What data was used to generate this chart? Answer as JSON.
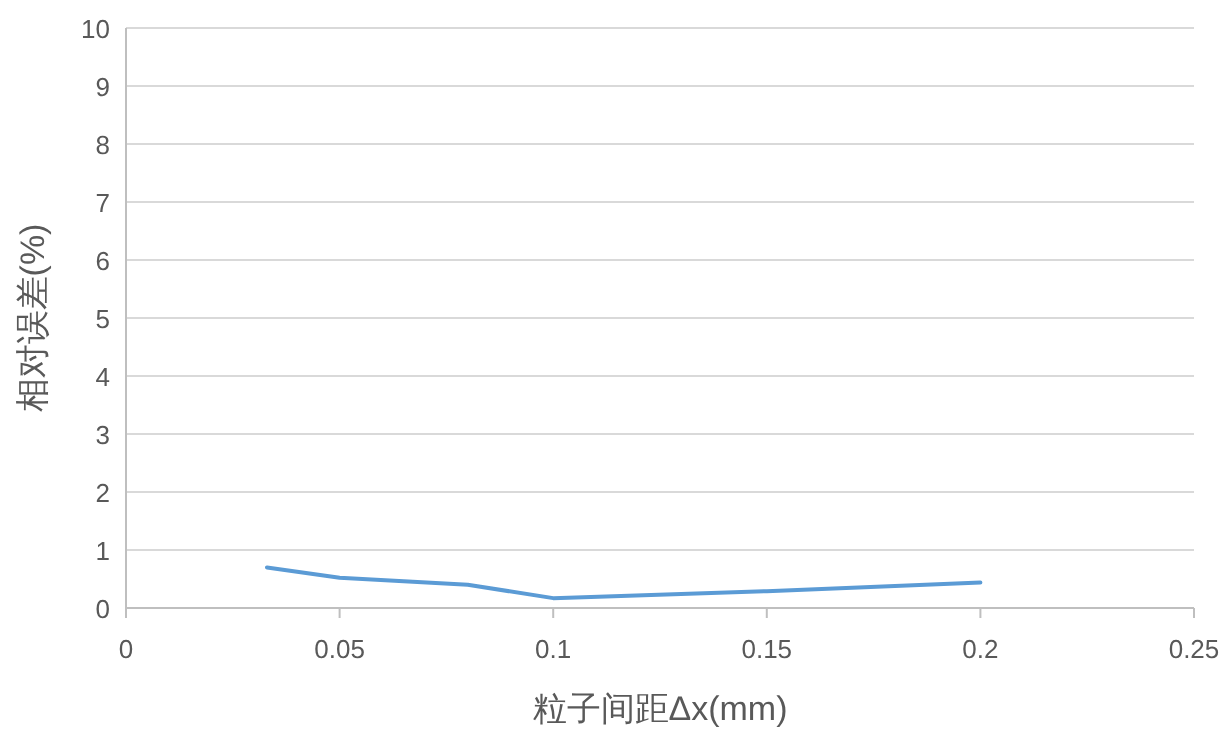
{
  "chart_data": {
    "type": "line",
    "xlabel": "粒子间距Δx(mm)",
    "ylabel": "相对误差(%)",
    "x": [
      0.033,
      0.05,
      0.08,
      0.1,
      0.15,
      0.2
    ],
    "series": [
      {
        "color": "#5b9bd5",
        "values": [
          0.7,
          0.52,
          0.4,
          0.17,
          0.29,
          0.44
        ]
      }
    ],
    "xlim": [
      0,
      0.25
    ],
    "xticks": [
      0,
      0.05,
      0.1,
      0.15,
      0.2,
      0.25
    ],
    "ylim": [
      0,
      10
    ],
    "yticks": [
      0,
      1,
      2,
      3,
      4,
      5,
      6,
      7,
      8,
      9,
      10
    ],
    "grid": "y",
    "marker": "none",
    "line_style": "solid"
  }
}
